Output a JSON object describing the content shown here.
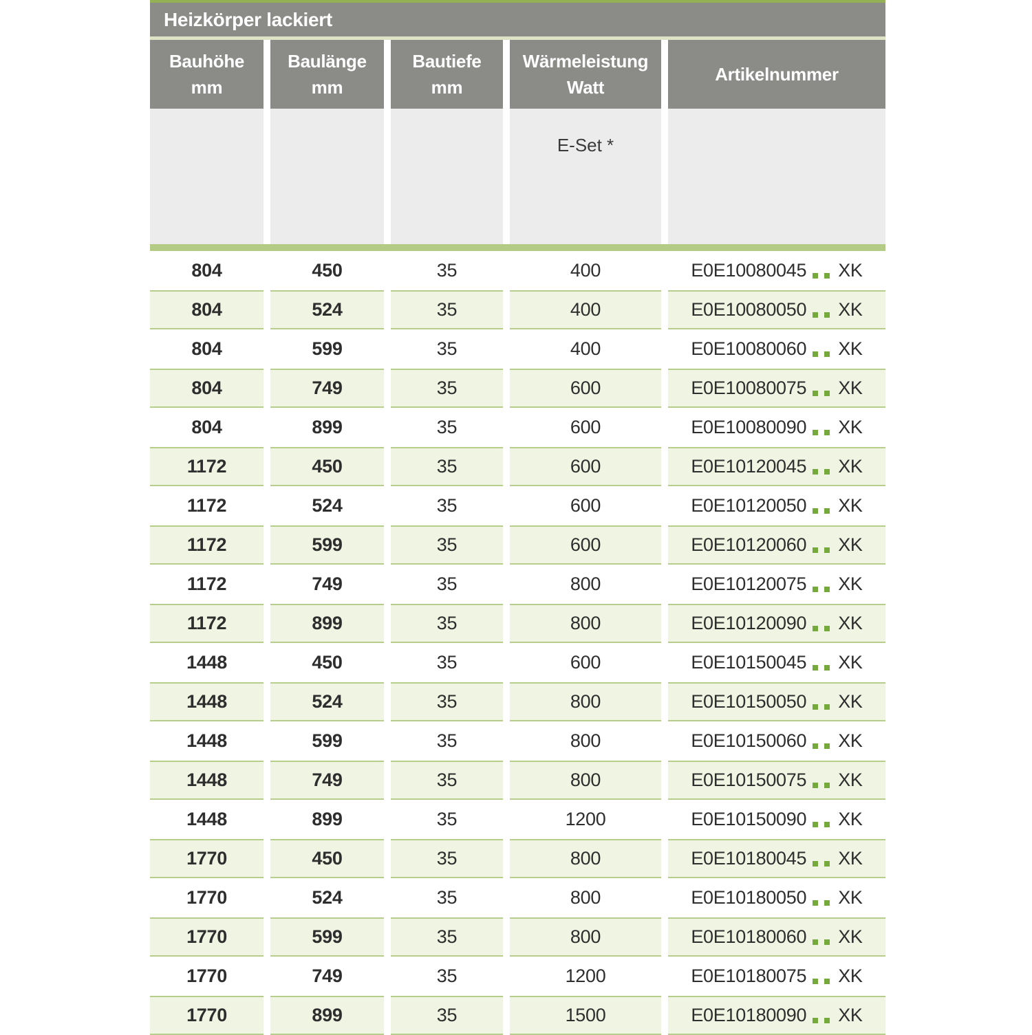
{
  "title": "Heizkörper lackiert",
  "subheader": {
    "eset_label": "E-Set *"
  },
  "columns": [
    {
      "label": "Bauhöhe",
      "unit": "mm"
    },
    {
      "label": "Baulänge",
      "unit": "mm"
    },
    {
      "label": "Bautiefe",
      "unit": "mm"
    },
    {
      "label": "Wärmeleistung",
      "unit": "Watt"
    },
    {
      "label": "Artikelnummer",
      "unit": ""
    }
  ],
  "colors": {
    "header_gray": "#8b8b88",
    "subheader_gray": "#ececec",
    "top_green_line": "#93b055",
    "title_divider": "#dfe3c6",
    "thick_green_bar": "#b3cb85",
    "alt_row_bg": "#f0f4e3",
    "alt_row_border": "#b7cd8c",
    "dot_green": "#76a93c"
  },
  "rows": [
    {
      "bauhoehe": "804",
      "baulaenge": "450",
      "bautiefe": "35",
      "watt": "400",
      "artikel_prefix": "E0E10080045",
      "artikel_suffix": "XK"
    },
    {
      "bauhoehe": "804",
      "baulaenge": "524",
      "bautiefe": "35",
      "watt": "400",
      "artikel_prefix": "E0E10080050",
      "artikel_suffix": "XK"
    },
    {
      "bauhoehe": "804",
      "baulaenge": "599",
      "bautiefe": "35",
      "watt": "400",
      "artikel_prefix": "E0E10080060",
      "artikel_suffix": "XK"
    },
    {
      "bauhoehe": "804",
      "baulaenge": "749",
      "bautiefe": "35",
      "watt": "600",
      "artikel_prefix": "E0E10080075",
      "artikel_suffix": "XK"
    },
    {
      "bauhoehe": "804",
      "baulaenge": "899",
      "bautiefe": "35",
      "watt": "600",
      "artikel_prefix": "E0E10080090",
      "artikel_suffix": "XK"
    },
    {
      "bauhoehe": "1172",
      "baulaenge": "450",
      "bautiefe": "35",
      "watt": "600",
      "artikel_prefix": "E0E10120045",
      "artikel_suffix": "XK"
    },
    {
      "bauhoehe": "1172",
      "baulaenge": "524",
      "bautiefe": "35",
      "watt": "600",
      "artikel_prefix": "E0E10120050",
      "artikel_suffix": "XK"
    },
    {
      "bauhoehe": "1172",
      "baulaenge": "599",
      "bautiefe": "35",
      "watt": "600",
      "artikel_prefix": "E0E10120060",
      "artikel_suffix": "XK"
    },
    {
      "bauhoehe": "1172",
      "baulaenge": "749",
      "bautiefe": "35",
      "watt": "800",
      "artikel_prefix": "E0E10120075",
      "artikel_suffix": "XK"
    },
    {
      "bauhoehe": "1172",
      "baulaenge": "899",
      "bautiefe": "35",
      "watt": "800",
      "artikel_prefix": "E0E10120090",
      "artikel_suffix": "XK"
    },
    {
      "bauhoehe": "1448",
      "baulaenge": "450",
      "bautiefe": "35",
      "watt": "600",
      "artikel_prefix": "E0E10150045",
      "artikel_suffix": "XK"
    },
    {
      "bauhoehe": "1448",
      "baulaenge": "524",
      "bautiefe": "35",
      "watt": "800",
      "artikel_prefix": "E0E10150050",
      "artikel_suffix": "XK"
    },
    {
      "bauhoehe": "1448",
      "baulaenge": "599",
      "bautiefe": "35",
      "watt": "800",
      "artikel_prefix": "E0E10150060",
      "artikel_suffix": "XK"
    },
    {
      "bauhoehe": "1448",
      "baulaenge": "749",
      "bautiefe": "35",
      "watt": "800",
      "artikel_prefix": "E0E10150075",
      "artikel_suffix": "XK"
    },
    {
      "bauhoehe": "1448",
      "baulaenge": "899",
      "bautiefe": "35",
      "watt": "1200",
      "artikel_prefix": "E0E10150090",
      "artikel_suffix": "XK"
    },
    {
      "bauhoehe": "1770",
      "baulaenge": "450",
      "bautiefe": "35",
      "watt": "800",
      "artikel_prefix": "E0E10180045",
      "artikel_suffix": "XK"
    },
    {
      "bauhoehe": "1770",
      "baulaenge": "524",
      "bautiefe": "35",
      "watt": "800",
      "artikel_prefix": "E0E10180050",
      "artikel_suffix": "XK"
    },
    {
      "bauhoehe": "1770",
      "baulaenge": "599",
      "bautiefe": "35",
      "watt": "800",
      "artikel_prefix": "E0E10180060",
      "artikel_suffix": "XK"
    },
    {
      "bauhoehe": "1770",
      "baulaenge": "749",
      "bautiefe": "35",
      "watt": "1200",
      "artikel_prefix": "E0E10180075",
      "artikel_suffix": "XK"
    },
    {
      "bauhoehe": "1770",
      "baulaenge": "899",
      "bautiefe": "35",
      "watt": "1500",
      "artikel_prefix": "E0E10180090",
      "artikel_suffix": "XK"
    }
  ]
}
